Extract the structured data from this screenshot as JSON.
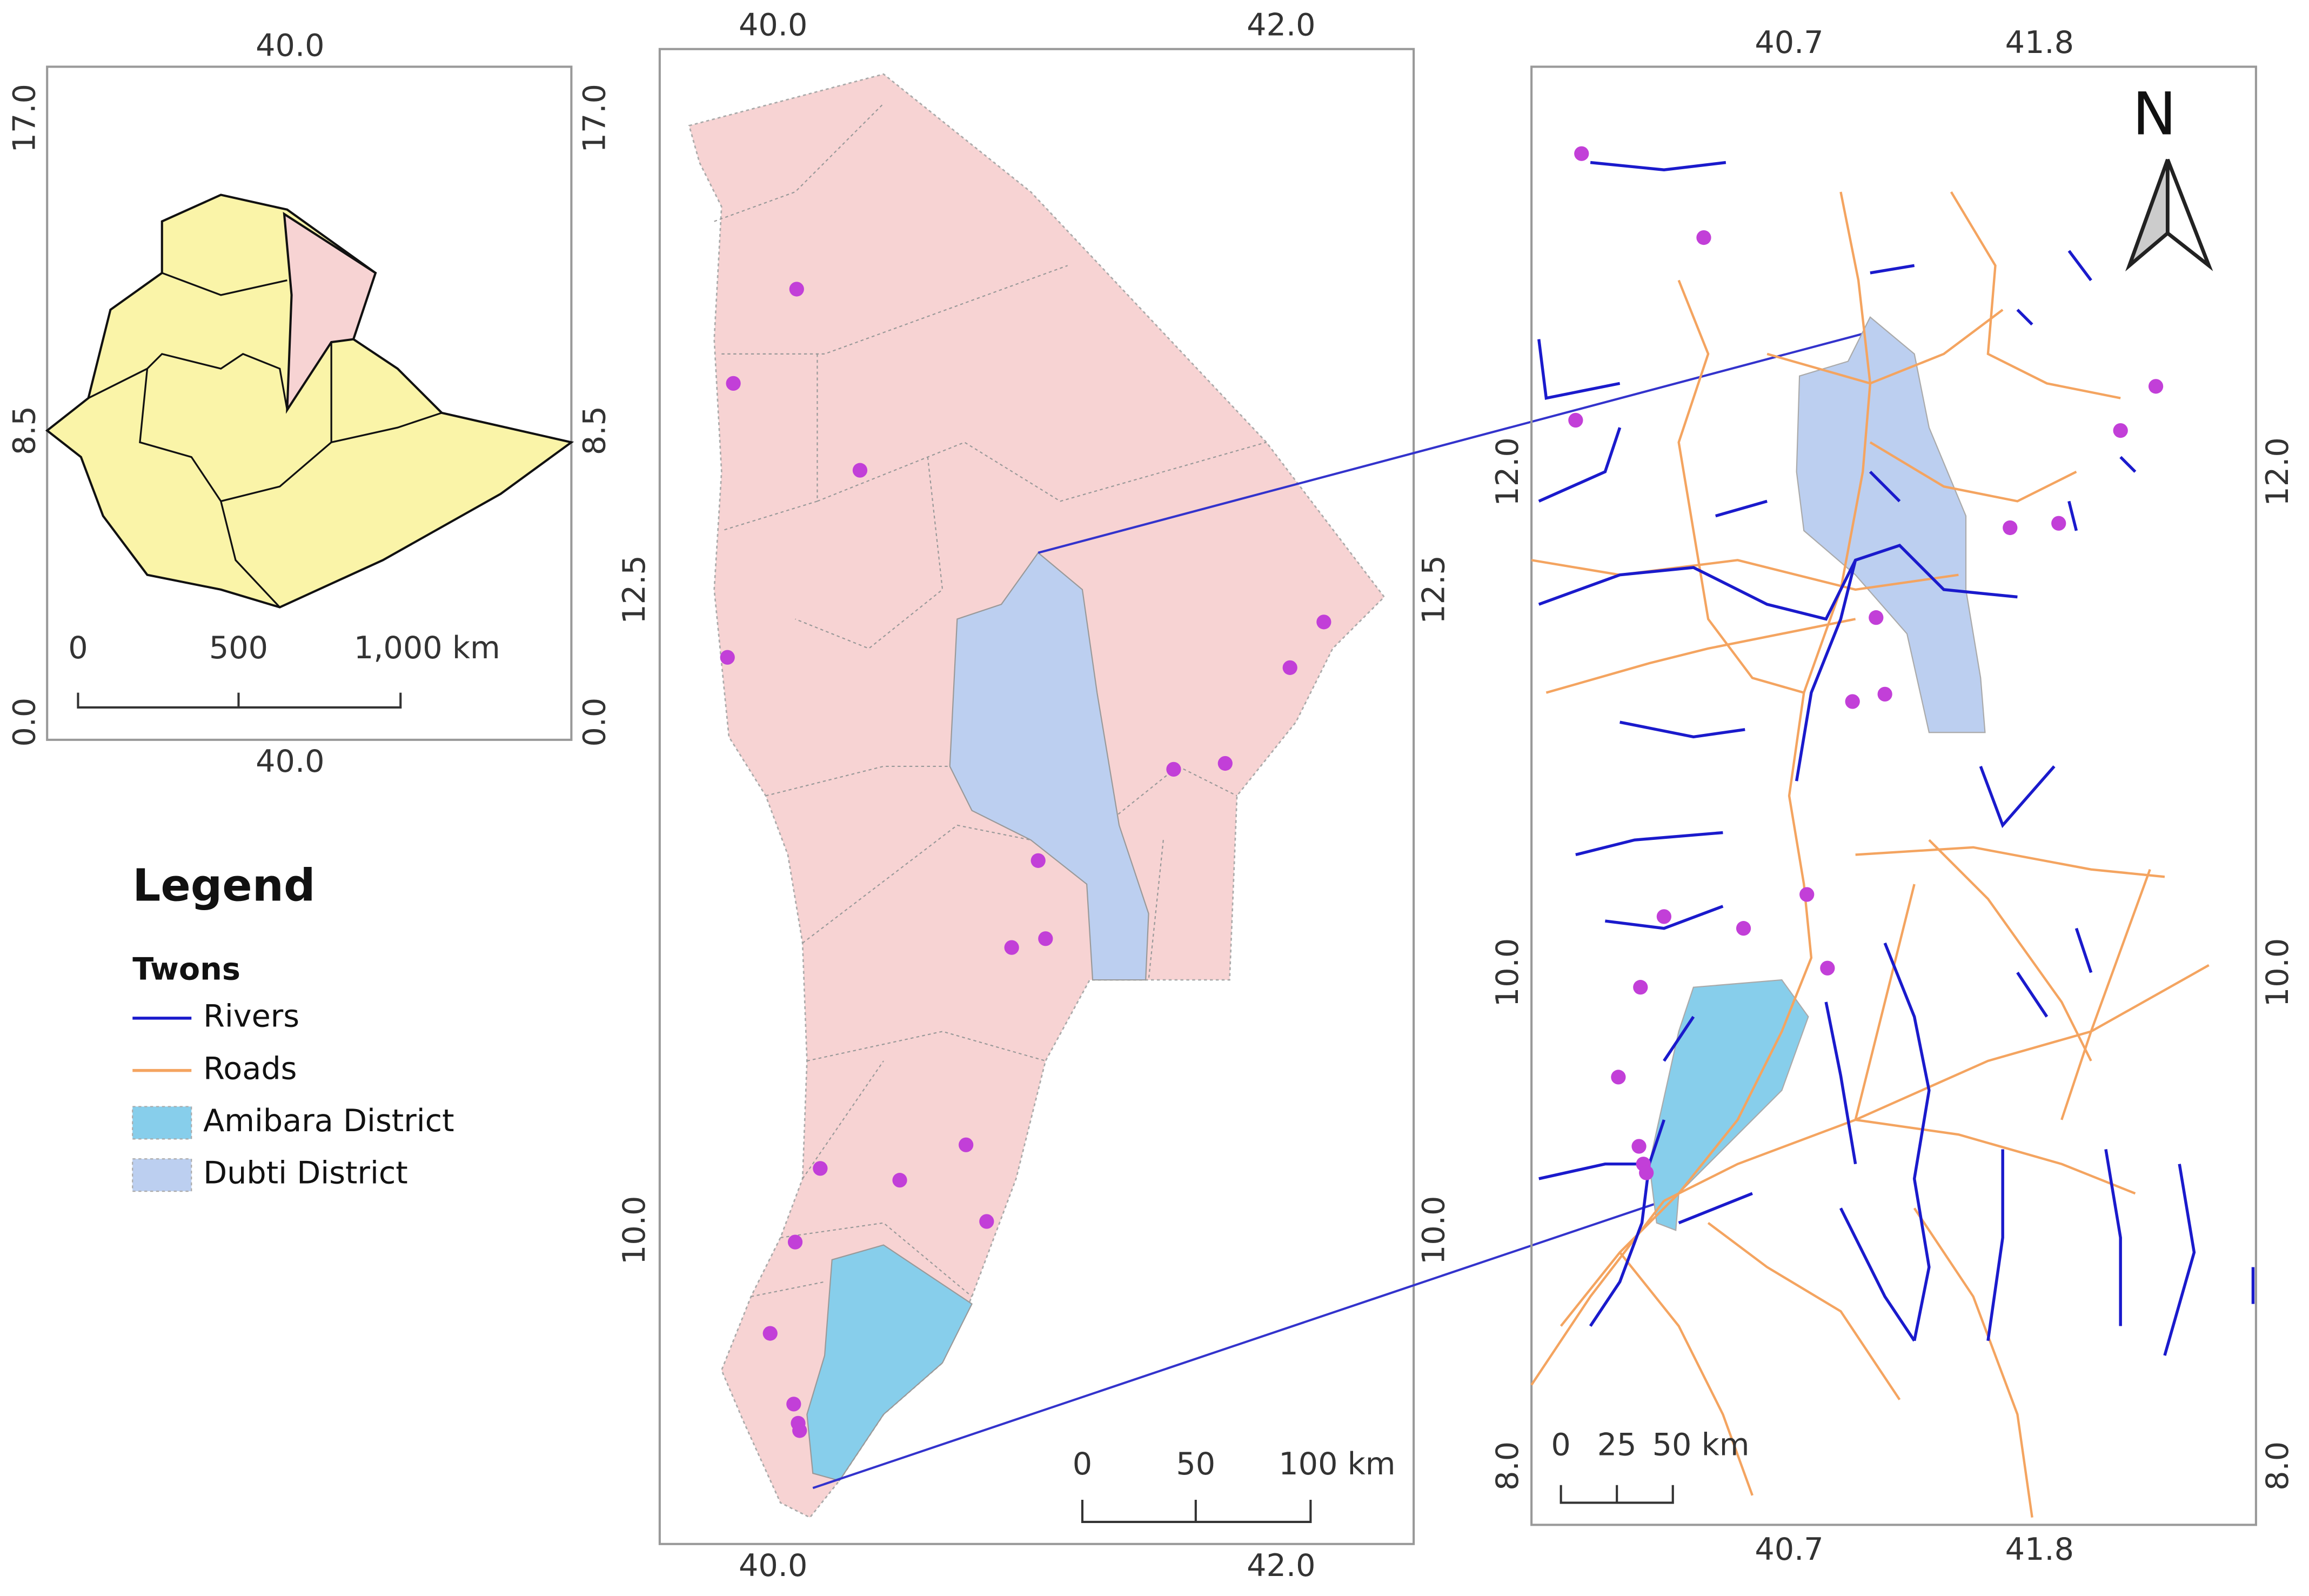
{
  "inset_map": {
    "top_labels": [
      "40.0"
    ],
    "bottom_labels": [
      "40.0"
    ],
    "left_labels": [
      "17.0",
      "8.5",
      "0.0"
    ],
    "right_labels": [
      "17.0",
      "8.5",
      "0.0"
    ],
    "scale_bar": [
      "0",
      "500",
      "1,000 km"
    ]
  },
  "main_map": {
    "top_labels": [
      "40.0",
      "42.0"
    ],
    "bottom_labels": [
      "40.0",
      "42.0"
    ],
    "left_labels": [
      "12.5",
      "10.0"
    ],
    "right_labels": [
      "12.5",
      "10.0"
    ],
    "scale_bar": [
      "0",
      "50",
      "100 km"
    ]
  },
  "detail_map": {
    "top_labels": [
      "40.7",
      "41.8"
    ],
    "bottom_labels": [
      "40.7",
      "41.8"
    ],
    "left_labels": [
      "12.0",
      "10.0",
      "8.0"
    ],
    "right_labels": [
      "12.0",
      "10.0",
      "8.0"
    ],
    "scale_bar": [
      "0",
      "25",
      "50 km"
    ],
    "north": "N"
  },
  "legend": {
    "title": "Legend",
    "subtitle": "Twons",
    "items": [
      {
        "label": "Rivers",
        "kind": "line",
        "color": "#1a1acc"
      },
      {
        "label": "Roads",
        "kind": "line",
        "color": "#f4a460"
      },
      {
        "label": "Amibara District",
        "kind": "area",
        "color": "#87ceeb"
      },
      {
        "label": "Dubti District",
        "kind": "area",
        "color": "#bccff0"
      }
    ]
  }
}
